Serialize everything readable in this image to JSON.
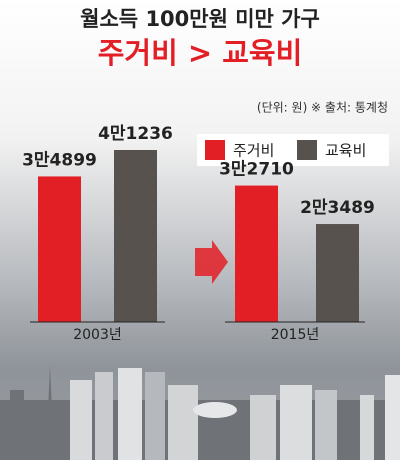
{
  "chart_data": {
    "type": "bar",
    "title": "월소득 100만원 미만 가구",
    "subtitle": "주거비 > 교육비",
    "note": "(단위: 원) ※ 출처: 통계청",
    "categories": [
      "2003년",
      "2015년"
    ],
    "series": [
      {
        "name": "주거비",
        "color": "#e31f26",
        "values": [
          34899,
          32710
        ],
        "value_labels": [
          "3만4899",
          "3만2710"
        ]
      },
      {
        "name": "교육비",
        "color": "#58524f",
        "values": [
          41236,
          23489
        ],
        "value_labels": [
          "4만1236",
          "2만3489"
        ]
      }
    ]
  }
}
